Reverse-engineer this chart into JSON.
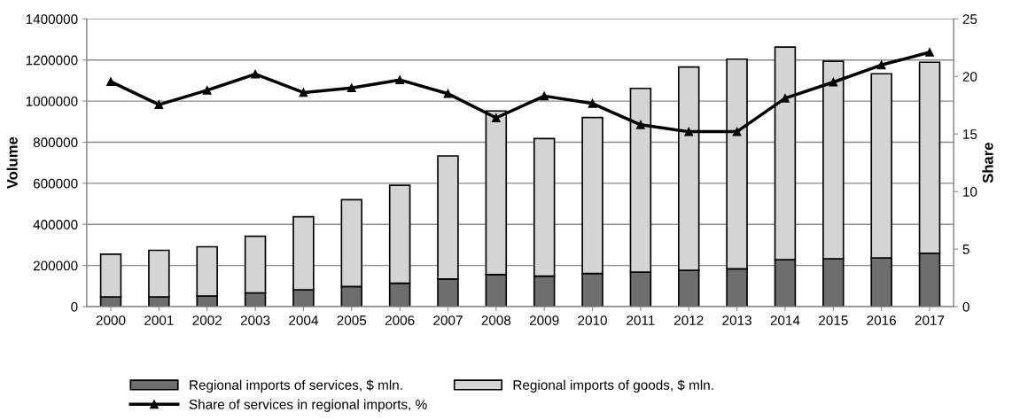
{
  "chart_data": {
    "type": "bar",
    "stacked": true,
    "ylabel": "Volume",
    "y2label": "Share",
    "categories": [
      "2000",
      "2001",
      "2002",
      "2003",
      "2004",
      "2005",
      "2006",
      "2007",
      "2008",
      "2009",
      "2010",
      "2011",
      "2012",
      "2013",
      "2014",
      "2015",
      "2016",
      "2017"
    ],
    "series": [
      {
        "name": "Regional imports of services, $ mln.",
        "color": "#6e6e6e",
        "values": [
          47000,
          47000,
          51000,
          67000,
          82000,
          98000,
          114000,
          134000,
          156000,
          148000,
          161000,
          168000,
          176000,
          184000,
          228000,
          233000,
          237000,
          260000
        ]
      },
      {
        "name": "Regional imports of goods, $ mln.",
        "color": "#d4d4d4",
        "values": [
          208000,
          227000,
          240000,
          275000,
          355000,
          422000,
          476000,
          599000,
          796000,
          670000,
          759000,
          894000,
          990000,
          1020000,
          1035000,
          961000,
          896000,
          929000
        ]
      },
      {
        "name": "Share of services in regional imports, %",
        "type": "line",
        "axis": "y2",
        "color": "#000000",
        "marker": "triangle",
        "values": [
          19.55,
          17.55,
          18.8,
          20.2,
          18.6,
          19.0,
          19.7,
          18.5,
          16.4,
          18.3,
          17.65,
          15.8,
          15.2,
          15.2,
          18.1,
          19.5,
          21.0,
          22.1
        ]
      }
    ],
    "ylim": [
      0,
      1400000
    ],
    "yticks": [
      0,
      200000,
      400000,
      600000,
      800000,
      1000000,
      1200000,
      1400000
    ],
    "y2lim": [
      0,
      25
    ],
    "y2ticks": [
      0,
      5,
      10,
      15,
      20,
      25
    ],
    "grid": "y",
    "legend": "bottom"
  }
}
